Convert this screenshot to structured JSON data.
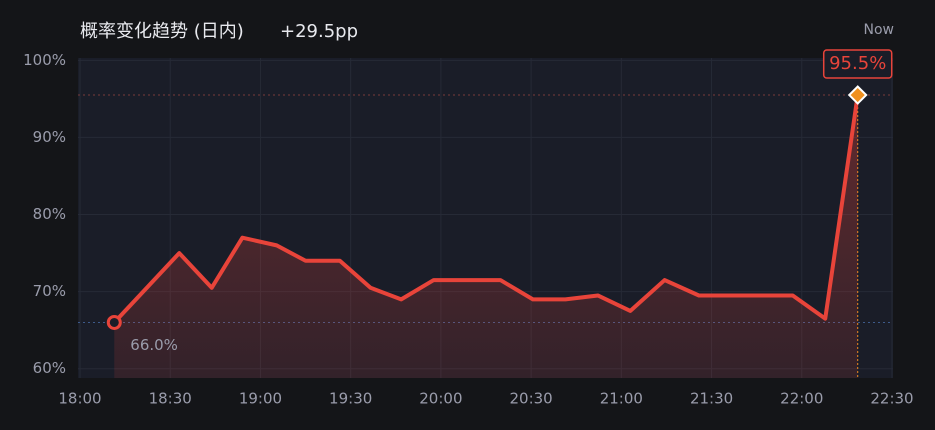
{
  "chart_data": {
    "type": "line",
    "title": "概率变化趋势 (日内)",
    "change": "+29.5pp",
    "now_label": "Now",
    "x": [
      18.19,
      18.55,
      18.73,
      18.9,
      19.09,
      19.25,
      19.44,
      19.61,
      19.78,
      19.96,
      20.14,
      20.33,
      20.51,
      20.69,
      20.87,
      21.05,
      21.24,
      21.43,
      21.6,
      21.78,
      21.95,
      22.13,
      22.31
    ],
    "series": [
      {
        "color": "#e8443a",
        "values": [
          66.0,
          75,
          70.5,
          77,
          76,
          74,
          74,
          70.5,
          69,
          71.5,
          71.5,
          71.5,
          69,
          69,
          69.5,
          67.5,
          71.5,
          69.5,
          69.5,
          69.5,
          69.5,
          66.5,
          95.5
        ],
        "value_labels": [
          "66.0%",
          null,
          null,
          null,
          null,
          null,
          null,
          null,
          null,
          null,
          null,
          null,
          null,
          null,
          null,
          null,
          null,
          null,
          null,
          null,
          null,
          null,
          "95.5%"
        ]
      }
    ],
    "xlim": [
      18,
      22.5
    ],
    "xticks": [
      {
        "value": 18,
        "label": "18:00"
      },
      {
        "value": 18.5,
        "label": "18:30"
      },
      {
        "value": 19,
        "label": "19:00"
      },
      {
        "value": 19.5,
        "label": "19:30"
      },
      {
        "value": 20,
        "label": "20:00"
      },
      {
        "value": 20.5,
        "label": "20:30"
      },
      {
        "value": 21,
        "label": "21:00"
      },
      {
        "value": 21.5,
        "label": "21:30"
      },
      {
        "value": 22,
        "label": "22:00"
      },
      {
        "value": 22.5,
        "label": "22:30"
      }
    ],
    "ylim": [
      58.8,
      100.3
    ],
    "yticks": [
      {
        "value": 60,
        "label": "60%"
      },
      {
        "value": 70,
        "label": "70%"
      },
      {
        "value": 80,
        "label": "80%"
      },
      {
        "value": 90,
        "label": "90%"
      },
      {
        "value": 100,
        "label": "100%"
      }
    ],
    "grid": true
  }
}
